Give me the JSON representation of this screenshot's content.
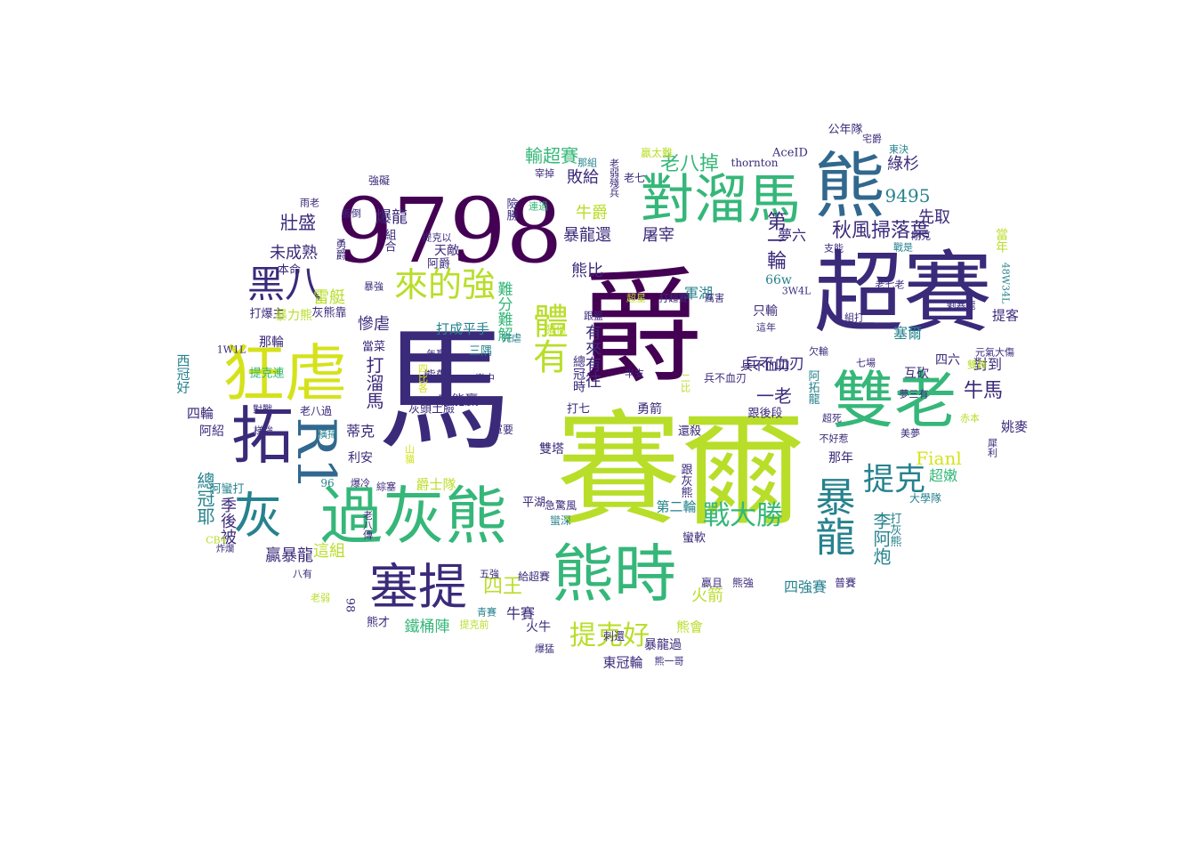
{
  "colors": {
    "deep_purple": "#440154",
    "indigo": "#3b2a7a",
    "blue": "#31688e",
    "teal": "#26828e",
    "green": "#35b779",
    "lime": "#b8de29",
    "yellow": "#d5e21a"
  },
  "words": [
    "馬",
    "爵",
    "賽爾",
    "超賽",
    "9798",
    "雙老",
    "熊",
    "對溜馬",
    "過灰熊",
    "熊時",
    "狂虐",
    "拓",
    "R1",
    "灰",
    "塞提",
    "暴龍",
    "提克",
    "黑八",
    "來的強",
    "戰大勝",
    "體有",
    "秋風掃落葉",
    "提克好",
    "輸超賽",
    "9495",
    "四王",
    "老八掉",
    "Fianl",
    "牛馬",
    "李阿炮",
    "壯盛",
    "未成熟",
    "雷艇",
    "爆龍",
    "暴龍還",
    "屠宰",
    "牛爵",
    "敗給",
    "綠杉",
    "先取",
    "夢六",
    "當年",
    "塞爾",
    "提客",
    "打溜馬",
    "慘虐",
    "一老",
    "第一輪",
    "熊比",
    "難分難解",
    "有來有往",
    "總冠耶",
    "季後被",
    "贏暴龍",
    "這組",
    "火箭",
    "四強賽",
    "牛賽",
    "鐵桶陣",
    "東冠輪",
    "熊會",
    "火牛",
    "超嫩",
    "姚麥",
    "對到",
    "四六",
    "互砍",
    "兵不血刃",
    "只輸",
    "軍湖",
    "66w",
    "蒂克",
    "利安",
    "四輪",
    "西冠好",
    "阿紹",
    "那輪",
    "打成平手",
    "總冠時",
    "哪能贏",
    "熊帶",
    "三隅",
    "雙塔",
    "爵士隊",
    "第二輪",
    "跟灰熊",
    "打灰熊",
    "大學隊",
    "那年",
    "勇箭",
    "還殺",
    "跟後段",
    "阿拓龍",
    "兵不血刃",
    "二比",
    "打七",
    "灰頭土臉",
    "暴龍過",
    "刺還",
    "給超賽",
    "普賽",
    "熊強",
    "贏且",
    "蠻軟",
    "蠻深",
    "急驚風",
    "平湖",
    "軍要",
    "山貓",
    "四比各",
    "打爆主",
    "暴力熊",
    "灰熊靠",
    "當菜",
    "1W1L",
    "提克連",
    "對戰",
    "梯強",
    "老八過",
    "橫掃",
    "阿蠻打",
    "96",
    "爆冷",
    "綜塞",
    "老八傳",
    "CB4",
    "炸爛",
    "八有",
    "老弱",
    "98",
    "熊才",
    "青賽",
    "提克前",
    "五強",
    "爆猛",
    "熊一哥",
    "老七",
    "阿爵",
    "天敵",
    "提克以",
    "勇爵",
    "本命",
    "雨老",
    "扳倒",
    "組合",
    "強礙",
    "那組",
    "宰掉",
    "連過",
    "老弱殘兵",
    "險勝",
    "贏太難",
    "thornton",
    "AceID",
    "公年隊",
    "宅爵",
    "東決",
    "剛克",
    "支能",
    "戰是",
    "老七老",
    "48W34L",
    "組打",
    "元氣大傷",
    "雙鋒",
    "夢三有",
    "美夢",
    "3W4L",
    "打超賽",
    "厲害",
    "半支",
    "七場",
    "欠輸",
    "這年",
    "不好惹",
    "跟籃",
    "超星",
    "超死",
    "猶他",
    "完虐",
    "犀利",
    "年贏",
    "蠻中",
    "暴強",
    "赤本",
    "剩暴龍",
    "打爆主",
    "挫",
    "鋼吃",
    "老八是"
  ]
}
